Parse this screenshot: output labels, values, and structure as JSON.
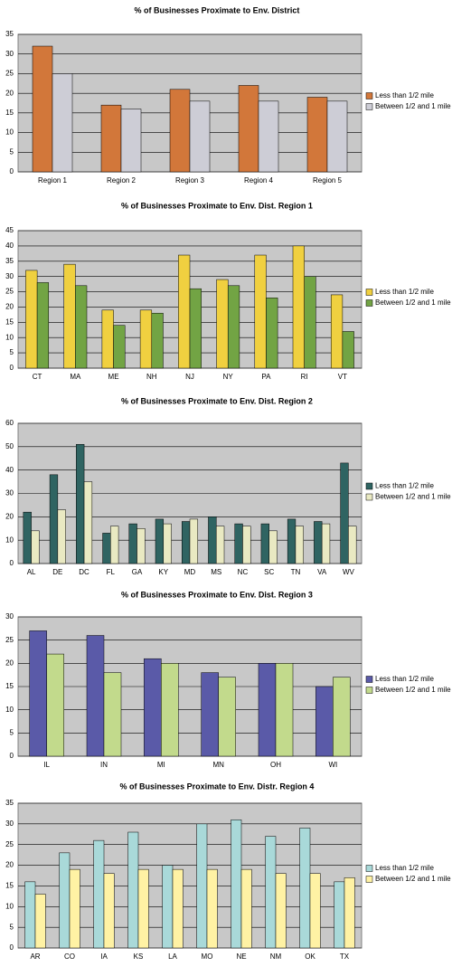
{
  "chart_data": [
    {
      "type": "bar",
      "title": "% of Businesses Proximate to Env. District",
      "categories": [
        "Region 1",
        "Region 2",
        "Region 3",
        "Region 4",
        "Region 5"
      ],
      "series": [
        {
          "name": "Less than 1/2 mile",
          "color": "#d2773a",
          "values": [
            32,
            17,
            21,
            22,
            19
          ]
        },
        {
          "name": "Between 1/2 and 1 mile",
          "color": "#cdcdd6",
          "values": [
            25,
            16,
            18,
            18,
            18
          ]
        }
      ],
      "ylim": [
        0,
        35
      ],
      "yticks": [
        0,
        5,
        10,
        15,
        20,
        25,
        30,
        35
      ],
      "grid": true
    },
    {
      "type": "bar",
      "title": "% of Businesses Proximate to Env. Dist. Region 1",
      "categories": [
        "CT",
        "MA",
        "ME",
        "NH",
        "NJ",
        "NY",
        "PA",
        "RI",
        "VT"
      ],
      "series": [
        {
          "name": "Less than 1/2 mile",
          "color": "#f0d040",
          "values": [
            32,
            34,
            19,
            19,
            37,
            29,
            37,
            40,
            24
          ]
        },
        {
          "name": "Between 1/2 and 1 mile",
          "color": "#72a444",
          "values": [
            28,
            27,
            14,
            18,
            26,
            27,
            23,
            30,
            12
          ]
        }
      ],
      "ylim": [
        0,
        45
      ],
      "yticks": [
        0,
        5,
        10,
        15,
        20,
        25,
        30,
        35,
        40,
        45
      ],
      "grid": true
    },
    {
      "type": "bar",
      "title": "% of Businesses Proximate to Env. Dist. Region 2",
      "categories": [
        "AL",
        "DE",
        "DC",
        "FL",
        "GA",
        "KY",
        "MD",
        "MS",
        "NC",
        "SC",
        "TN",
        "VA",
        "WV"
      ],
      "series": [
        {
          "name": "Less than 1/2 mile",
          "color": "#2f6462",
          "values": [
            22,
            38,
            51,
            13,
            17,
            19,
            18,
            20,
            17,
            17,
            19,
            18,
            43
          ]
        },
        {
          "name": "Between 1/2 and 1 mile",
          "color": "#e9e9c2",
          "values": [
            14,
            23,
            35,
            16,
            15,
            17,
            19,
            16,
            16,
            14,
            16,
            17,
            16
          ]
        }
      ],
      "ylim": [
        0,
        60
      ],
      "yticks": [
        0,
        10,
        20,
        30,
        40,
        50,
        60
      ],
      "grid": true
    },
    {
      "type": "bar",
      "title": "% of Businesses Proximate to Env. Dist. Region 3",
      "categories": [
        "IL",
        "IN",
        "MI",
        "MN",
        "OH",
        "WI"
      ],
      "series": [
        {
          "name": "Less than 1/2 mile",
          "color": "#5a5aa8",
          "values": [
            27,
            26,
            21,
            18,
            20,
            15
          ]
        },
        {
          "name": "Between 1/2 and 1 mile",
          "color": "#c2da8c",
          "values": [
            22,
            18,
            20,
            17,
            20,
            17
          ]
        }
      ],
      "ylim": [
        0,
        30
      ],
      "yticks": [
        0,
        5,
        10,
        15,
        20,
        25,
        30
      ],
      "grid": true
    },
    {
      "type": "bar",
      "title": "% of Businesses Proximate to Env. Distr. Region 4",
      "categories": [
        "AR",
        "CO",
        "IA",
        "KS",
        "LA",
        "MO",
        "NE",
        "NM",
        "OK",
        "TX"
      ],
      "series": [
        {
          "name": "Less than 1/2 mile",
          "color": "#a9d9d9",
          "values": [
            16,
            23,
            26,
            28,
            20,
            30,
            31,
            27,
            29,
            16
          ]
        },
        {
          "name": "Between 1/2 and 1 mile",
          "color": "#fff2a4",
          "values": [
            13,
            19,
            18,
            19,
            19,
            19,
            19,
            18,
            18,
            17
          ]
        }
      ],
      "ylim": [
        0,
        35
      ],
      "yticks": [
        0,
        5,
        10,
        15,
        20,
        25,
        30,
        35
      ],
      "grid": true
    }
  ]
}
